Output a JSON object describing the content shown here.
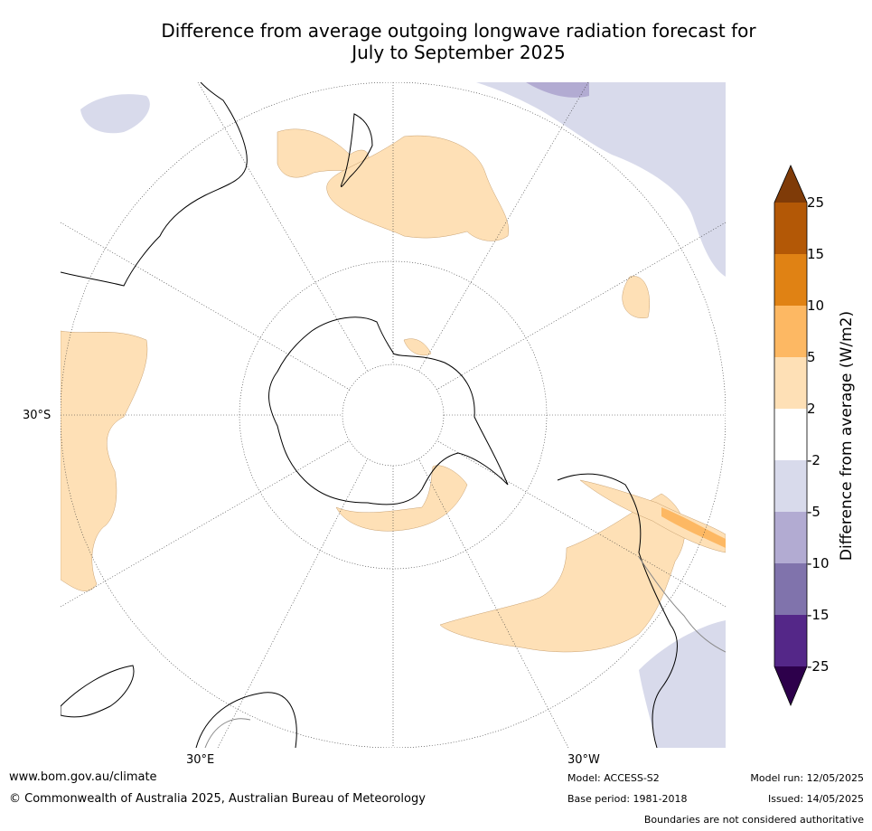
{
  "title_line1": "Difference from average outgoing longwave radiation forecast for",
  "title_line2": "July to September 2025",
  "map": {
    "projection": "south-polar-stereographic",
    "labels": {
      "lat_30s": "30°S",
      "lon_30e": "30°E",
      "lon_30w": "30°W"
    }
  },
  "colorbar": {
    "label": "Difference from average (W/m2)",
    "ticks": [
      "25",
      "15",
      "10",
      "5",
      "2",
      "-2",
      "-5",
      "-10",
      "-15",
      "-25"
    ],
    "colors": {
      "over": "#7f3b08",
      "15_25": "#b35806",
      "10_15": "#e08214",
      "5_10": "#fdb863",
      "2_5": "#fee0b6",
      "neg2_2": "#ffffff",
      "neg5_neg2": "#d8daeb",
      "neg10_neg5": "#b2abd2",
      "neg15_neg10": "#8073ac",
      "neg25_neg15": "#542788",
      "under": "#2d004b"
    }
  },
  "footer": {
    "website": "www.bom.gov.au/climate",
    "copyright": "© Commonwealth of Australia 2025, Australian Bureau of Meteorology",
    "model": "Model: ACCESS-S2",
    "base_period": "Base period: 1981-2018",
    "model_run": "Model run: 12/05/2025",
    "issued": "Issued: 14/05/2025",
    "disclaimer": "Boundaries are not considered authoritative"
  }
}
